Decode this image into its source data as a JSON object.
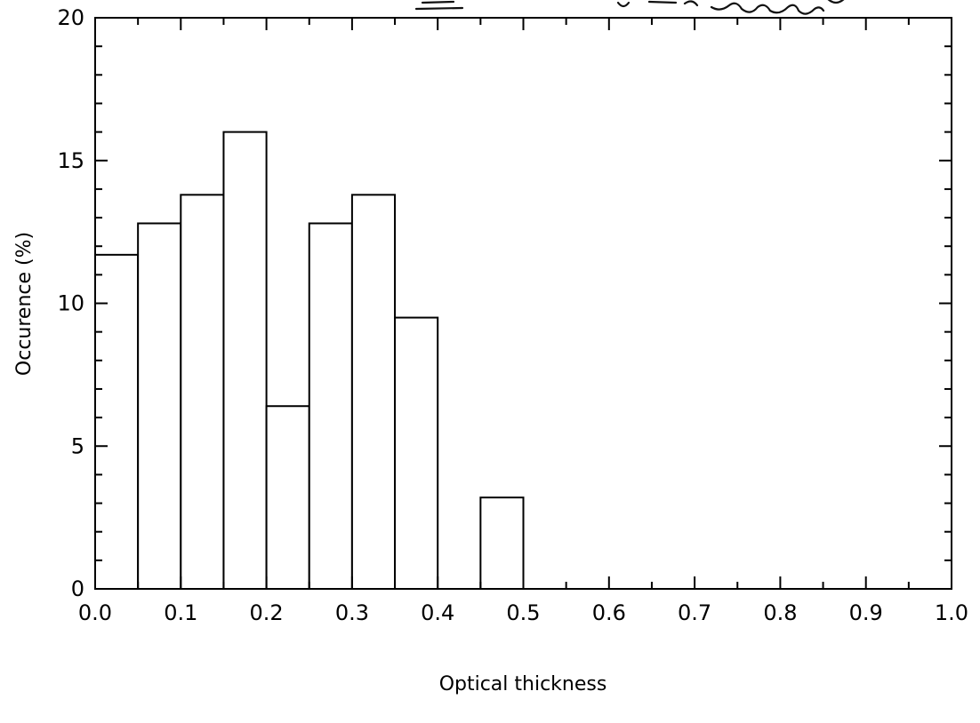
{
  "chart_data": {
    "type": "bar",
    "xlabel": "Optical thickness",
    "ylabel": "Occurence (%)",
    "xlim": [
      0.0,
      1.0
    ],
    "ylim": [
      0,
      20
    ],
    "bin_width": 0.05,
    "bins": [
      {
        "x0": 0.0,
        "x1": 0.05,
        "value": 11.7
      },
      {
        "x0": 0.05,
        "x1": 0.1,
        "value": 12.8
      },
      {
        "x0": 0.1,
        "x1": 0.15,
        "value": 13.8
      },
      {
        "x0": 0.15,
        "x1": 0.2,
        "value": 16.0
      },
      {
        "x0": 0.2,
        "x1": 0.25,
        "value": 6.4
      },
      {
        "x0": 0.25,
        "x1": 0.3,
        "value": 12.8
      },
      {
        "x0": 0.3,
        "x1": 0.35,
        "value": 13.8
      },
      {
        "x0": 0.35,
        "x1": 0.4,
        "value": 9.5
      },
      {
        "x0": 0.4,
        "x1": 0.45,
        "value": 0
      },
      {
        "x0": 0.45,
        "x1": 0.5,
        "value": 3.2
      }
    ],
    "x_ticks": [
      "0.0",
      "0.1",
      "0.2",
      "0.3",
      "0.4",
      "0.5",
      "0.6",
      "0.7",
      "0.8",
      "0.9",
      "1.0"
    ],
    "y_ticks": [
      "0",
      "5",
      "10",
      "15",
      "20"
    ],
    "grid": false,
    "bar_fill": "#ffffff",
    "bar_stroke": "#000000"
  }
}
